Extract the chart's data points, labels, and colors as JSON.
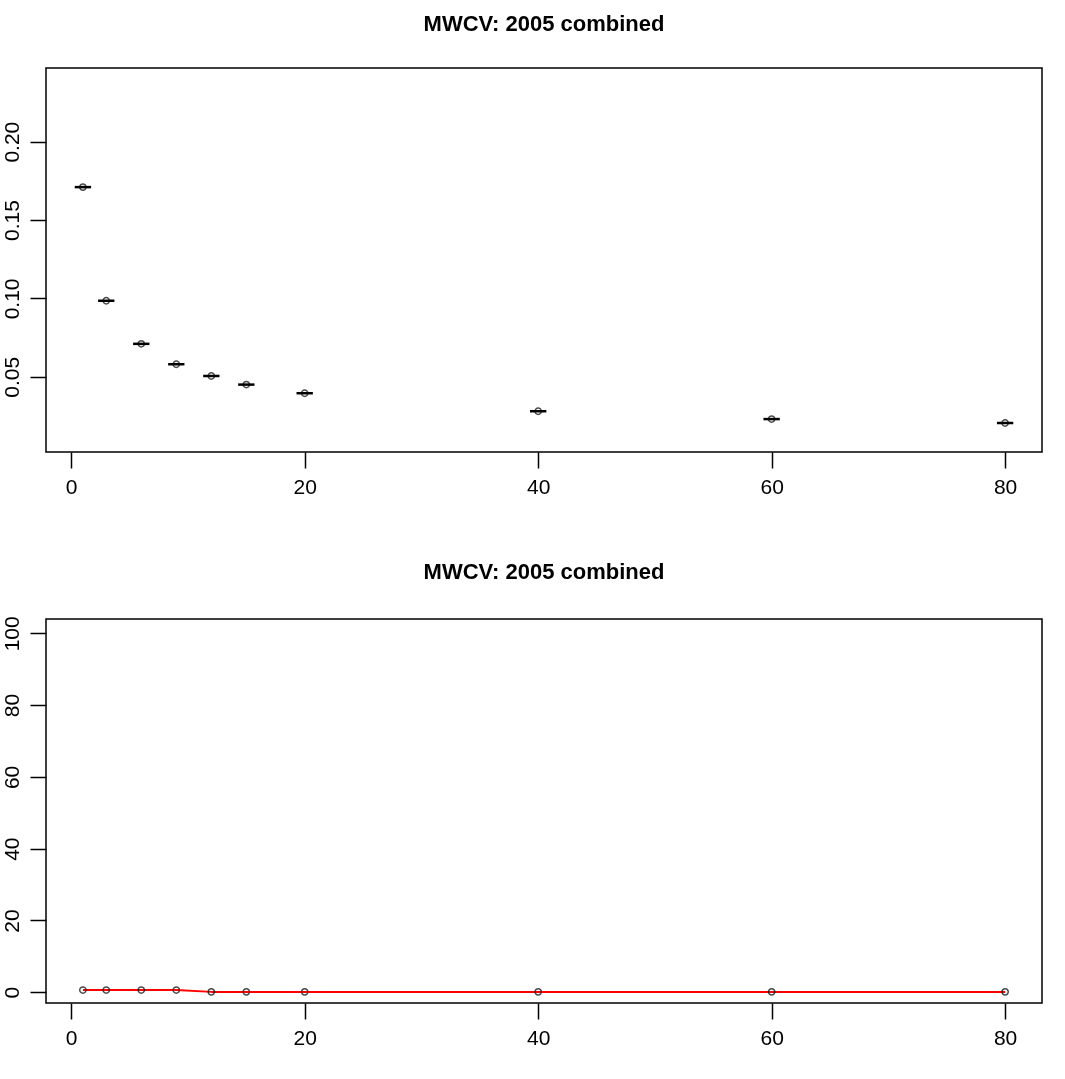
{
  "chart_data": [
    {
      "type": "scatter",
      "title": "MWCV: 2005 combined",
      "x": [
        1,
        3,
        6,
        9,
        12,
        15,
        20,
        40,
        60,
        80
      ],
      "series": [
        {
          "color": "#000000",
          "values": [
            0.171,
            0.0985,
            0.071,
            0.058,
            0.0505,
            0.045,
            0.0395,
            0.028,
            0.023,
            0.0205
          ],
          "xerrors": [
            0.7,
            0.7,
            0.7,
            0.7,
            0.7,
            0.7,
            0.7,
            0.7,
            0.7,
            0.7
          ]
        }
      ],
      "xlim": [
        -2.16,
        83.16
      ],
      "xticks": [
        0,
        20,
        40,
        60,
        80
      ],
      "ylim": [
        0.002,
        0.247
      ],
      "yticks": [
        {
          "value": 0.05,
          "label": "0.05"
        },
        {
          "value": 0.1,
          "label": "0.10"
        },
        {
          "value": 0.15,
          "label": "0.15"
        },
        {
          "value": 0.2,
          "label": "0.20"
        }
      ],
      "marker": "circle",
      "grid": false
    },
    {
      "type": "line",
      "title": "MWCV: 2005 combined",
      "x": [
        1,
        3,
        6,
        9,
        12,
        15,
        20,
        40,
        60,
        80
      ],
      "series": [
        {
          "color": "#ff0000",
          "values": [
            0.6,
            0.6,
            0.6,
            0.6,
            0.1,
            0.1,
            0.1,
            0.1,
            0.1,
            0.1
          ]
        }
      ],
      "xlim": [
        -2.16,
        83.16
      ],
      "xticks": [
        0,
        20,
        40,
        60,
        80
      ],
      "ylim": [
        -3,
        104
      ],
      "yticks": [
        0,
        20,
        40,
        60,
        80,
        100
      ],
      "marker": "circle",
      "line_style": "solid",
      "grid": false
    }
  ]
}
